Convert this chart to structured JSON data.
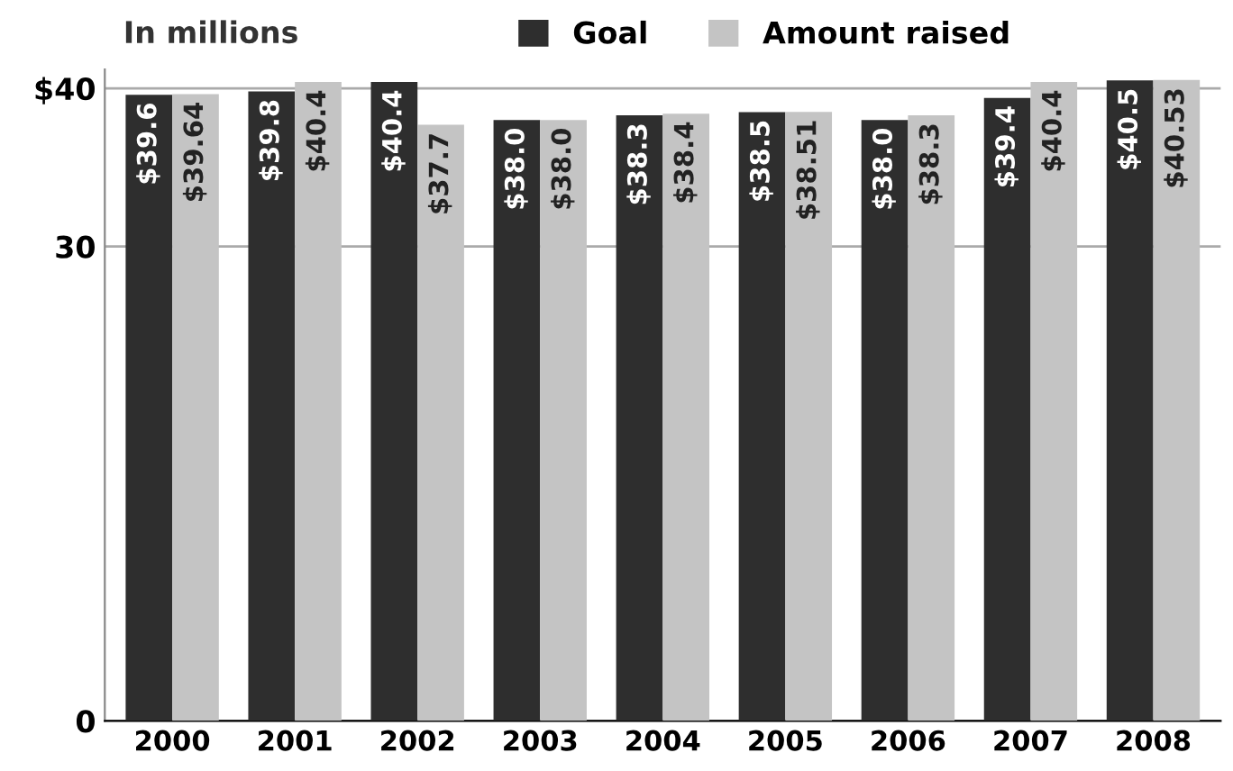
{
  "chart_data": {
    "type": "bar",
    "ylabel": "In millions",
    "categories": [
      "2000",
      "2001",
      "2002",
      "2003",
      "2004",
      "2005",
      "2006",
      "2007",
      "2008"
    ],
    "series": [
      {
        "name": "Goal",
        "color": "#2e2e2e",
        "values": [
          39.6,
          39.8,
          40.4,
          38.0,
          38.3,
          38.5,
          38.0,
          39.4,
          40.5
        ],
        "value_labels": [
          "$39.6",
          "$39.8",
          "$40.4",
          "$38.0",
          "$38.3",
          "$38.5",
          "$38.0",
          "$39.4",
          "$40.5"
        ]
      },
      {
        "name": "Amount raised",
        "color": "#c4c4c4",
        "values": [
          39.64,
          40.4,
          37.7,
          38.0,
          38.4,
          38.51,
          38.3,
          40.4,
          40.53
        ],
        "value_labels": [
          "$39.64",
          "$40.4",
          "$37.7",
          "$38.0",
          "$38.4",
          "$38.51",
          "$38.3",
          "$40.4",
          "$40.53"
        ]
      }
    ],
    "ylim": [
      0,
      41.2
    ],
    "yticks": [
      0,
      30,
      {
        "value": 40,
        "label": "$40"
      }
    ],
    "grid": "y",
    "legend": "top"
  }
}
